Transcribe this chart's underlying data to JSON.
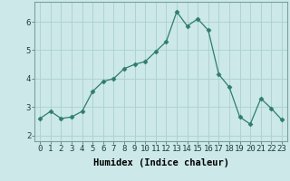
{
  "x": [
    0,
    1,
    2,
    3,
    4,
    5,
    6,
    7,
    8,
    9,
    10,
    11,
    12,
    13,
    14,
    15,
    16,
    17,
    18,
    19,
    20,
    21,
    22,
    23
  ],
  "y": [
    2.6,
    2.85,
    2.6,
    2.65,
    2.85,
    3.55,
    3.9,
    4.0,
    4.35,
    4.5,
    4.6,
    4.95,
    5.3,
    6.35,
    5.85,
    6.1,
    5.7,
    4.15,
    3.7,
    2.65,
    2.4,
    3.3,
    2.95,
    2.55
  ],
  "line_color": "#2e7d6e",
  "marker": "D",
  "marker_size": 2.5,
  "bg_color": "#cce8e8",
  "grid_color": "#aad0d0",
  "xlabel": "Humidex (Indice chaleur)",
  "xlabel_fontsize": 7.5,
  "tick_fontsize": 6.5,
  "ylim": [
    1.8,
    6.7
  ],
  "xlim": [
    -0.5,
    23.5
  ],
  "yticks": [
    2,
    3,
    4,
    5,
    6
  ],
  "xticks": [
    0,
    1,
    2,
    3,
    4,
    5,
    6,
    7,
    8,
    9,
    10,
    11,
    12,
    13,
    14,
    15,
    16,
    17,
    18,
    19,
    20,
    21,
    22,
    23
  ]
}
